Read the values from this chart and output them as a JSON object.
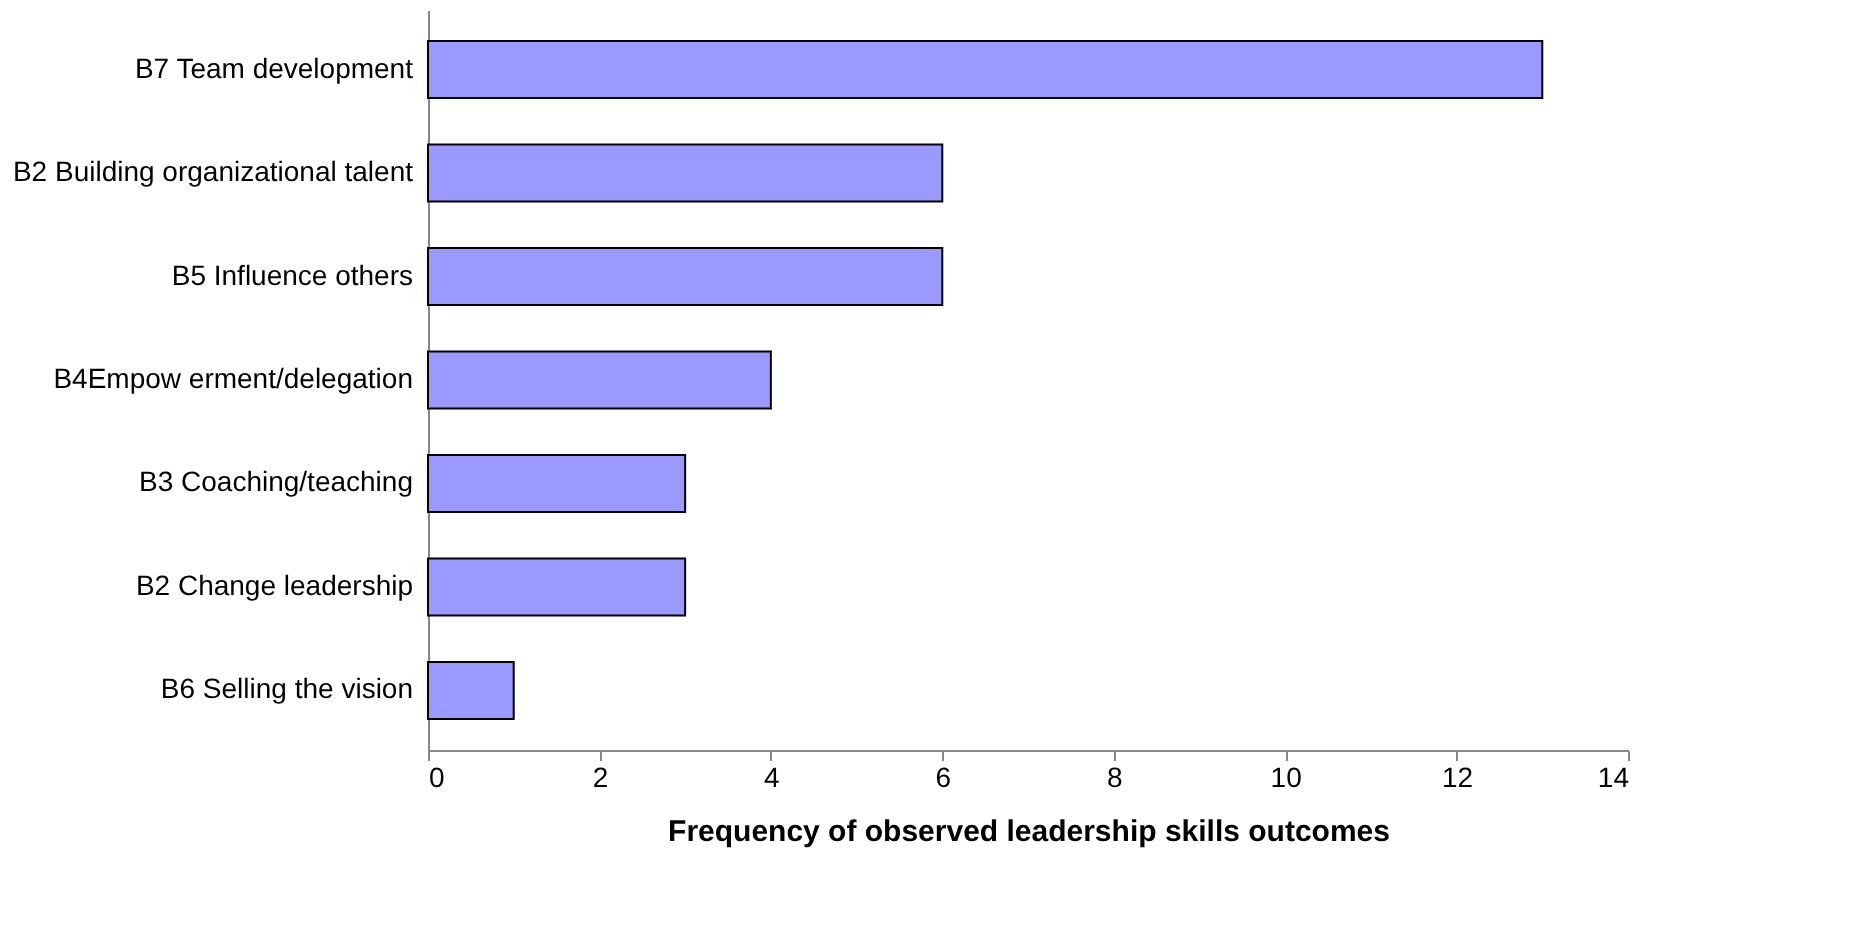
{
  "chart_data": {
    "type": "bar",
    "orientation": "horizontal",
    "categories": [
      "B7 Team development",
      "B2 Building organizational talent",
      "B5 Influence others",
      "B4Empow erment/delegation",
      "B3 Coaching/teaching",
      "B2 Change leadership",
      "B6 Selling the vision"
    ],
    "values": [
      13,
      6,
      6,
      4,
      3,
      3,
      1
    ],
    "color": "#9999ff",
    "xlabel": "Frequency of observed leadership skills outcomes",
    "xlim": [
      0,
      14
    ],
    "xticks": [
      0,
      2,
      4,
      6,
      8,
      10,
      12,
      14
    ],
    "grid": false
  }
}
